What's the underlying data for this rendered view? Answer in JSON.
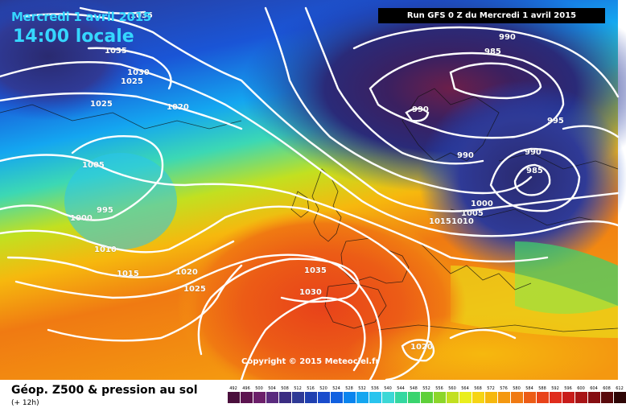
{
  "header": {
    "date_label": "Mercredi 1 avril 2015",
    "time_label": "14:00 locale",
    "run_label": "Run GFS 0 Z du Mercredi 1 avril 2015"
  },
  "copyright": "Copyright © 2015 Meteociel.fr",
  "footer": {
    "title": "Géop. Z500 & pression au sol",
    "subtitle": "(+ 12h)"
  },
  "isobar_labels": [
    "1035",
    "1035",
    "1030",
    "1025",
    "1025",
    "1020",
    "1005",
    "1000",
    "995",
    "1010",
    "1015",
    "1020",
    "1025",
    "1035",
    "1030",
    "1020",
    "990",
    "985",
    "990",
    "990",
    "995",
    "990",
    "985",
    "1000",
    "1005",
    "1010",
    "1015"
  ],
  "legend": {
    "values": [
      "492",
      "496",
      "500",
      "504",
      "508",
      "512",
      "516",
      "520",
      "524",
      "528",
      "532",
      "536",
      "540",
      "544",
      "548",
      "552",
      "556",
      "560",
      "564",
      "568",
      "572",
      "576",
      "580",
      "584",
      "588",
      "592",
      "596",
      "600",
      "604",
      "608",
      "612"
    ],
    "colors": [
      "#4a0f3c",
      "#5c1450",
      "#6c1f6a",
      "#5a2a7e",
      "#3b2d82",
      "#2f3a96",
      "#1f3fb0",
      "#1a4ccc",
      "#1060e0",
      "#0a84ee",
      "#14a6f0",
      "#29c4ee",
      "#3cd8d6",
      "#34d8a0",
      "#3ad46e",
      "#5ed03a",
      "#8cd62a",
      "#c2e020",
      "#eaee1c",
      "#f6d414",
      "#f6b80e",
      "#f49810",
      "#f07a12",
      "#ec5c16",
      "#e8421a",
      "#e02c1c",
      "#c81c1a",
      "#a81416",
      "#860e12",
      "#5a0a0c",
      "#2e0606"
    ]
  }
}
